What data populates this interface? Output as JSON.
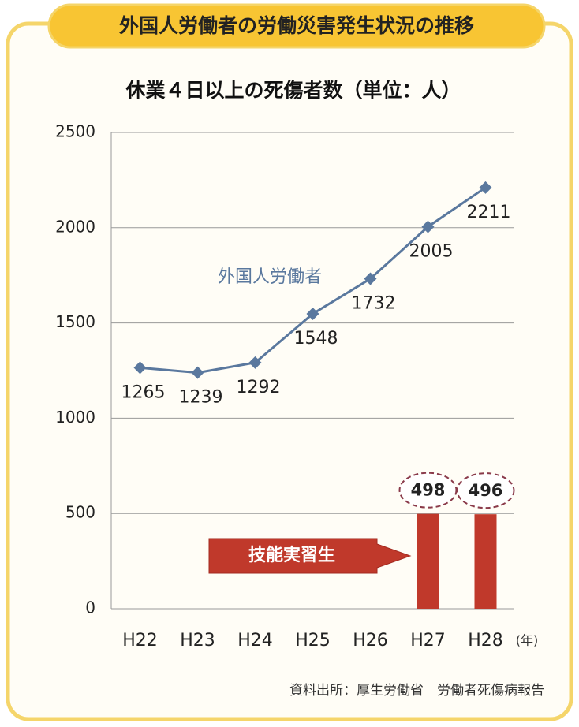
{
  "chart_data": {
    "type": "line",
    "title": "外国人労働者の労働災害発生状況の推移",
    "subtitle": "休業４日以上の死傷者数（単位：人）",
    "x_unit": "(年)",
    "source": "資料出所：厚生労働省　労働者死傷病報告",
    "categories": [
      "H22",
      "H23",
      "H24",
      "H25",
      "H26",
      "H27",
      "H28"
    ],
    "series": [
      {
        "name": "外国人労働者",
        "type": "line",
        "color": "#5a789e",
        "values": [
          1265,
          1239,
          1292,
          1548,
          1732,
          2005,
          2211
        ]
      },
      {
        "name": "技能実習生",
        "type": "bar",
        "color": "#c0392b",
        "values": [
          null,
          null,
          null,
          null,
          null,
          498,
          496
        ]
      }
    ],
    "ylim": [
      0,
      2500
    ],
    "yticks": [
      0,
      500,
      1000,
      1500,
      2000,
      2500
    ],
    "grid": true
  }
}
